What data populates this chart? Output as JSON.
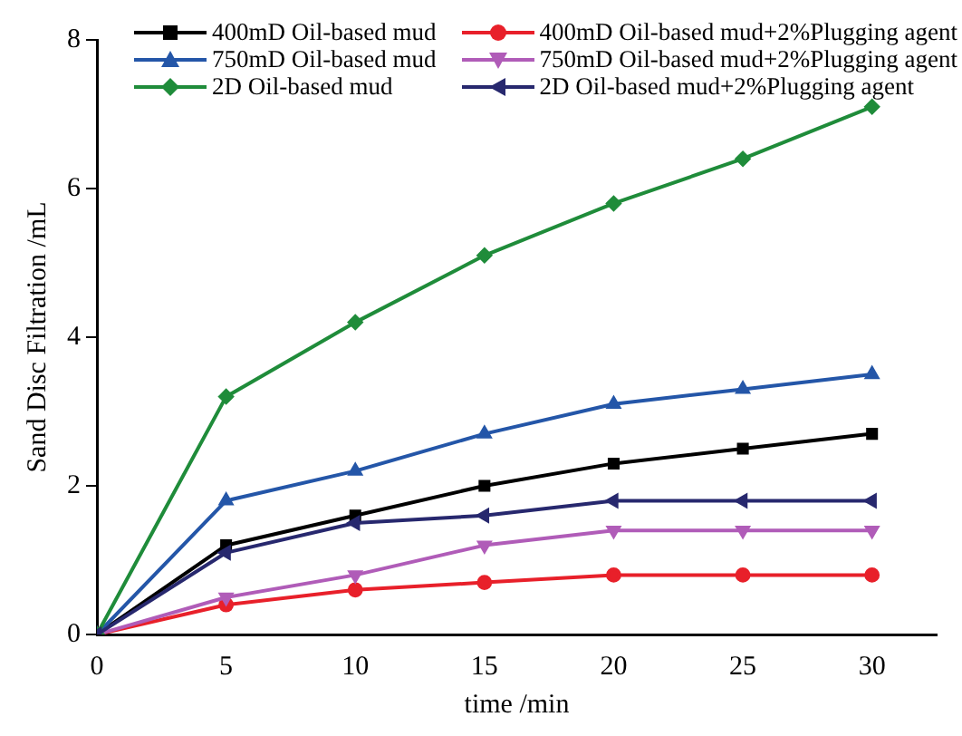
{
  "chart_data": {
    "type": "line",
    "xlabel": "time /min",
    "ylabel": "Sand Disc Filtration /mL",
    "x": [
      0,
      5,
      10,
      15,
      20,
      25,
      30
    ],
    "xlim": [
      0,
      32.5
    ],
    "xticks": [
      0,
      5,
      10,
      15,
      20,
      25,
      30
    ],
    "ylim": [
      0,
      8
    ],
    "yticks": [
      0,
      2,
      4,
      6,
      8
    ],
    "grid": false,
    "legend": "top",
    "line_style": "solid",
    "series": [
      {
        "name": "400mD Oil-based mud",
        "color": "#000000",
        "marker": "square",
        "values": [
          0,
          1.2,
          1.6,
          2.0,
          2.3,
          2.5,
          2.7
        ]
      },
      {
        "name": "400mD Oil-based mud+2%Plugging agent",
        "color": "#e8202a",
        "marker": "circle",
        "values": [
          0,
          0.4,
          0.6,
          0.7,
          0.8,
          0.8,
          0.8
        ]
      },
      {
        "name": "750mD Oil-based mud",
        "color": "#2456a8",
        "marker": "triangle",
        "values": [
          0,
          1.8,
          2.2,
          2.7,
          3.1,
          3.3,
          3.5
        ]
      },
      {
        "name": "750mD Oil-based mud+2%Plugging agent",
        "color": "#b05cb8",
        "marker": "triangle-down",
        "values": [
          0,
          0.5,
          0.8,
          1.2,
          1.4,
          1.4,
          1.4
        ]
      },
      {
        "name": "2D Oil-based mud",
        "color": "#1f8c3a",
        "marker": "diamond",
        "values": [
          0,
          3.2,
          4.2,
          5.1,
          5.8,
          6.4,
          7.1
        ]
      },
      {
        "name": "2D Oil-based mud+2%Plugging agent",
        "color": "#27286e",
        "marker": "triangle-left",
        "values": [
          0,
          1.1,
          1.5,
          1.6,
          1.8,
          1.8,
          1.8
        ]
      }
    ]
  }
}
